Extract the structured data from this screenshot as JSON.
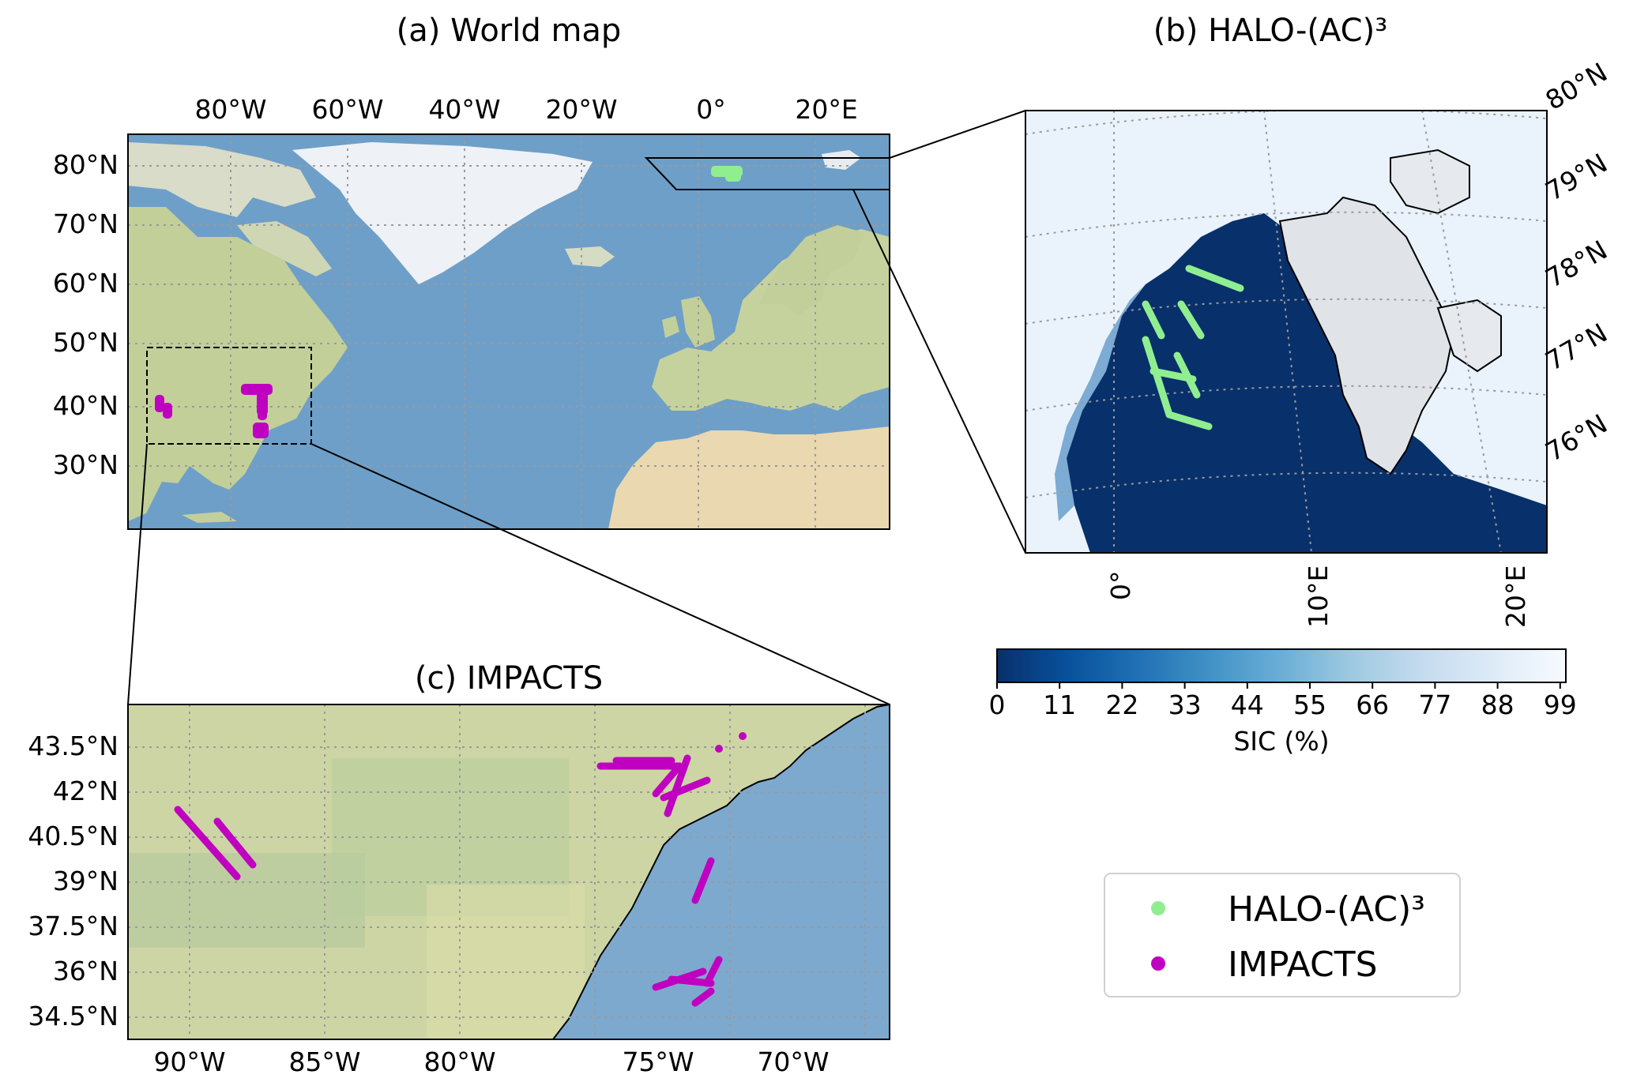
{
  "panel_a": {
    "title": "(a) World map",
    "lon_ticks": [
      "80°W",
      "60°W",
      "40°W",
      "20°W",
      "0°",
      "20°E"
    ],
    "lat_ticks": [
      "80°N",
      "70°N",
      "60°N",
      "50°N",
      "40°N",
      "30°N"
    ]
  },
  "panel_b": {
    "title": "(b) HALO-(AC)³",
    "lat_ticks": [
      "80°N",
      "79°N",
      "78°N",
      "77°N",
      "76°N"
    ],
    "lon_ticks": [
      "0°",
      "10°E",
      "20°E"
    ]
  },
  "colorbar": {
    "label": "SIC (%)",
    "ticks": [
      "0",
      "11",
      "22",
      "33",
      "44",
      "55",
      "66",
      "77",
      "88",
      "99"
    ],
    "colormap": [
      "#08306b",
      "#08519c",
      "#2171b5",
      "#4292c6",
      "#6baed6",
      "#9ecae1",
      "#c6dbef",
      "#deebf7",
      "#f7fbff"
    ]
  },
  "panel_c": {
    "title": "(c) IMPACTS",
    "lat_ticks": [
      "43.5°N",
      "42°N",
      "40.5°N",
      "39°N",
      "37.5°N",
      "36°N",
      "34.5°N"
    ],
    "lon_ticks": [
      "90°W",
      "85°W",
      "80°W",
      "75°W",
      "70°W"
    ]
  },
  "legend": {
    "items": [
      {
        "label": "HALO-(AC)³",
        "color": "#90ee90"
      },
      {
        "label": "IMPACTS",
        "color": "#c000c0"
      }
    ]
  },
  "colors": {
    "halo": "#90ee90",
    "impacts": "#c000c0",
    "ocean": "#6e9fc8",
    "land": "#c9d3a0",
    "ice": "#eef1f5",
    "sea_ice_open": "#08306b"
  }
}
